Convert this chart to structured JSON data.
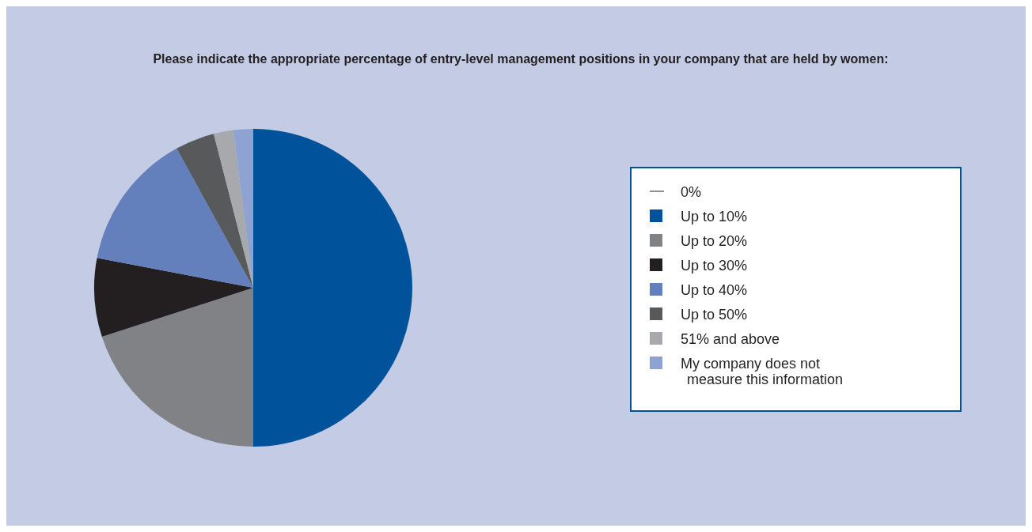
{
  "chart_data": {
    "type": "pie",
    "title": "Please indicate the appropriate percentage of entry-level management positions in your company that are held by women:",
    "categories": [
      "0%",
      "Up to 10%",
      "Up to 20%",
      "Up to 30%",
      "Up to 40%",
      "Up to 50%",
      "51% and above",
      "My company does not measure this information"
    ],
    "values": [
      0,
      50,
      20,
      8,
      14,
      4,
      2,
      2
    ],
    "colors": [
      "#231f20",
      "#00529b",
      "#808285",
      "#231f20",
      "#6480bc",
      "#58595b",
      "#a7a9ac",
      "#8fa3d3"
    ],
    "legend": "right"
  }
}
